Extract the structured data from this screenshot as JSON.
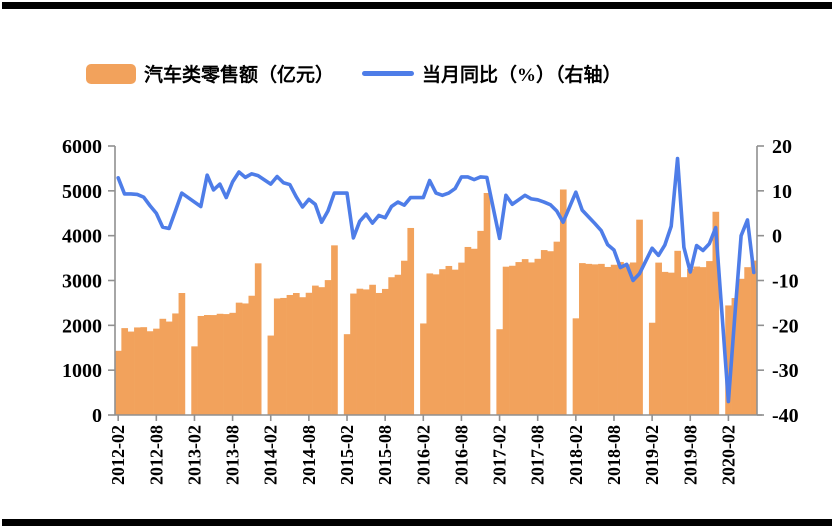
{
  "page": {
    "background": "#ffffff",
    "top_rule_color": "#000000",
    "bottom_rule_color": "#000000"
  },
  "colors": {
    "bar": "#F2A25C",
    "line": "#4E7DE8",
    "axis": "#909090",
    "text": "#000000"
  },
  "legend": [
    {
      "label": "汽车类零售额（亿元）",
      "type": "bar",
      "color": "#F2A25C"
    },
    {
      "label": "当月同比（%）（右轴）",
      "type": "line",
      "color": "#4E7DE8"
    }
  ],
  "chart_data": {
    "type": "bar+line combo (dual axis)",
    "title": "",
    "legend_position": "top",
    "grid": false,
    "x_axis": {
      "tick_labels": [
        "2012-02",
        "2012-08",
        "2013-02",
        "2013-08",
        "2014-02",
        "2014-08",
        "2015-02",
        "2015-08",
        "2016-02",
        "2016-08",
        "2017-02",
        "2017-08",
        "2018-02",
        "2018-08",
        "2019-02",
        "2019-08",
        "2020-02"
      ],
      "note": "monthly slots from 2012-02 to 2020-06; January slots have no data (white gaps between years)"
    },
    "left_axis": {
      "series": "汽车类零售额（亿元）",
      "min": 0,
      "max": 6000,
      "step": 1000,
      "tick_labels": [
        "0",
        "1000",
        "2000",
        "3000",
        "4000",
        "5000",
        "6000"
      ]
    },
    "right_axis": {
      "series": "当月同比（%）",
      "min": -40,
      "max": 20,
      "step": 10,
      "tick_labels": [
        "-40",
        "-30",
        "-20",
        "-10",
        "0",
        "10",
        "20"
      ]
    },
    "series": [
      {
        "name": "汽车类零售额（亿元）",
        "type": "bar",
        "axis": "left",
        "color": "#F2A25C"
      },
      {
        "name": "当月同比（%）（右轴）",
        "type": "line",
        "axis": "right",
        "color": "#4E7DE8"
      }
    ],
    "slots": [
      {
        "m": "2012-02",
        "bar": 1432,
        "line": 12.9
      },
      {
        "m": "2012-03",
        "bar": 1938,
        "line": 9.3
      },
      {
        "m": "2012-04",
        "bar": 1861,
        "line": 9.3
      },
      {
        "m": "2012-05",
        "bar": 1953,
        "line": 9.2
      },
      {
        "m": "2012-06",
        "bar": 1959,
        "line": 8.6
      },
      {
        "m": "2012-07",
        "bar": 1868,
        "line": 6.7
      },
      {
        "m": "2012-08",
        "bar": 1926,
        "line": 5.0
      },
      {
        "m": "2012-09",
        "bar": 2146,
        "line": 1.9
      },
      {
        "m": "2012-10",
        "bar": 2084,
        "line": 1.6
      },
      {
        "m": "2012-11",
        "bar": 2265,
        "line": 5.5
      },
      {
        "m": "2012-12",
        "bar": 2721,
        "line": 9.5
      },
      {
        "m": "2013-01",
        "bar": null,
        "line": null
      },
      {
        "m": "2013-02",
        "bar": 1531,
        "line": 7.5
      },
      {
        "m": "2013-03",
        "bar": 2209,
        "line": 6.5
      },
      {
        "m": "2013-04",
        "bar": 2230,
        "line": 13.5
      },
      {
        "m": "2013-05",
        "bar": 2229,
        "line": 10.2
      },
      {
        "m": "2013-06",
        "bar": 2258,
        "line": 11.5
      },
      {
        "m": "2013-07",
        "bar": 2251,
        "line": 8.5
      },
      {
        "m": "2013-08",
        "bar": 2279,
        "line": 12.0
      },
      {
        "m": "2013-09",
        "bar": 2506,
        "line": 14.2
      },
      {
        "m": "2013-10",
        "bar": 2488,
        "line": 13.0
      },
      {
        "m": "2013-11",
        "bar": 2660,
        "line": 13.8
      },
      {
        "m": "2013-12",
        "bar": 3383,
        "line": 13.4
      },
      {
        "m": "2014-01",
        "bar": null,
        "line": null
      },
      {
        "m": "2014-02",
        "bar": 1772,
        "line": 11.5
      },
      {
        "m": "2014-03",
        "bar": 2599,
        "line": 13.2
      },
      {
        "m": "2014-04",
        "bar": 2611,
        "line": 11.8
      },
      {
        "m": "2014-05",
        "bar": 2677,
        "line": 11.4
      },
      {
        "m": "2014-06",
        "bar": 2721,
        "line": 8.7
      },
      {
        "m": "2014-07",
        "bar": 2627,
        "line": 6.4
      },
      {
        "m": "2014-08",
        "bar": 2726,
        "line": 8.1
      },
      {
        "m": "2014-09",
        "bar": 2886,
        "line": 7.0
      },
      {
        "m": "2014-10",
        "bar": 2851,
        "line": 3.0
      },
      {
        "m": "2014-11",
        "bar": 3009,
        "line": 5.5
      },
      {
        "m": "2014-12",
        "bar": 3784,
        "line": 9.5
      },
      {
        "m": "2015-01",
        "bar": null,
        "line": null
      },
      {
        "m": "2015-02",
        "bar": 1803,
        "line": 9.5
      },
      {
        "m": "2015-03",
        "bar": 2709,
        "line": -0.5
      },
      {
        "m": "2015-04",
        "bar": 2817,
        "line": 3.2
      },
      {
        "m": "2015-05",
        "bar": 2801,
        "line": 4.8
      },
      {
        "m": "2015-06",
        "bar": 2905,
        "line": 2.8
      },
      {
        "m": "2015-07",
        "bar": 2722,
        "line": 4.5
      },
      {
        "m": "2015-08",
        "bar": 2812,
        "line": 4.0
      },
      {
        "m": "2015-09",
        "bar": 3073,
        "line": 6.5
      },
      {
        "m": "2015-10",
        "bar": 3128,
        "line": 7.5
      },
      {
        "m": "2015-11",
        "bar": 3441,
        "line": 6.8
      },
      {
        "m": "2015-12",
        "bar": 4172,
        "line": 8.5
      },
      {
        "m": "2016-01",
        "bar": null,
        "line": null
      },
      {
        "m": "2016-02",
        "bar": 2042,
        "line": 8.5
      },
      {
        "m": "2016-03",
        "bar": 3158,
        "line": 12.3
      },
      {
        "m": "2016-04",
        "bar": 3137,
        "line": 9.5
      },
      {
        "m": "2016-05",
        "bar": 3252,
        "line": 9.0
      },
      {
        "m": "2016-06",
        "bar": 3324,
        "line": 9.5
      },
      {
        "m": "2016-07",
        "bar": 3242,
        "line": 10.5
      },
      {
        "m": "2016-08",
        "bar": 3399,
        "line": 13.1
      },
      {
        "m": "2016-09",
        "bar": 3748,
        "line": 13.1
      },
      {
        "m": "2016-10",
        "bar": 3708,
        "line": 12.5
      },
      {
        "m": "2016-11",
        "bar": 4107,
        "line": 13.1
      },
      {
        "m": "2016-12",
        "bar": 4952,
        "line": 13.0
      },
      {
        "m": "2017-01",
        "bar": null,
        "line": null
      },
      {
        "m": "2017-02",
        "bar": 1913,
        "line": -0.6
      },
      {
        "m": "2017-03",
        "bar": 3308,
        "line": 9.0
      },
      {
        "m": "2017-04",
        "bar": 3329,
        "line": 7.0
      },
      {
        "m": "2017-05",
        "bar": 3411,
        "line": 8.0
      },
      {
        "m": "2017-06",
        "bar": 3477,
        "line": 9.0
      },
      {
        "m": "2017-07",
        "bar": 3403,
        "line": 8.2
      },
      {
        "m": "2017-08",
        "bar": 3484,
        "line": 8.0
      },
      {
        "m": "2017-09",
        "bar": 3679,
        "line": 7.5
      },
      {
        "m": "2017-10",
        "bar": 3653,
        "line": 6.9
      },
      {
        "m": "2017-11",
        "bar": 3866,
        "line": 5.5
      },
      {
        "m": "2017-12",
        "bar": 5030,
        "line": 3.0
      },
      {
        "m": "2018-01",
        "bar": null,
        "line": null
      },
      {
        "m": "2018-02",
        "bar": 2156,
        "line": 9.7
      },
      {
        "m": "2018-03",
        "bar": 3388,
        "line": 5.7
      },
      {
        "m": "2018-04",
        "bar": 3371,
        "line": 4.2
      },
      {
        "m": "2018-05",
        "bar": 3360,
        "line": 2.7
      },
      {
        "m": "2018-06",
        "bar": 3371,
        "line": 1.1
      },
      {
        "m": "2018-07",
        "bar": 3302,
        "line": -2.0
      },
      {
        "m": "2018-08",
        "bar": 3351,
        "line": -3.2
      },
      {
        "m": "2018-09",
        "bar": 3413,
        "line": -7.1
      },
      {
        "m": "2018-10",
        "bar": 3362,
        "line": -6.4
      },
      {
        "m": "2018-11",
        "bar": 3402,
        "line": -10.0
      },
      {
        "m": "2018-12",
        "bar": 4357,
        "line": -8.5
      },
      {
        "m": "2019-01",
        "bar": null,
        "line": null
      },
      {
        "m": "2019-02",
        "bar": 2058,
        "line": -2.8
      },
      {
        "m": "2019-03",
        "bar": 3399,
        "line": -4.4
      },
      {
        "m": "2019-04",
        "bar": 3192,
        "line": -2.1
      },
      {
        "m": "2019-05",
        "bar": 3175,
        "line": 2.1
      },
      {
        "m": "2019-06",
        "bar": 3662,
        "line": 17.2
      },
      {
        "m": "2019-07",
        "bar": 3074,
        "line": -2.6
      },
      {
        "m": "2019-08",
        "bar": 3259,
        "line": -8.1
      },
      {
        "m": "2019-09",
        "bar": 3311,
        "line": -2.2
      },
      {
        "m": "2019-10",
        "bar": 3298,
        "line": -3.3
      },
      {
        "m": "2019-11",
        "bar": 3433,
        "line": -1.8
      },
      {
        "m": "2019-12",
        "bar": 4533,
        "line": 1.8
      },
      {
        "m": "2020-01",
        "bar": null,
        "line": null
      },
      {
        "m": "2020-02",
        "bar": 2444,
        "line": -37.0
      },
      {
        "m": "2020-03",
        "bar": 2609,
        "line": -18.1
      },
      {
        "m": "2020-04",
        "bar": 3038,
        "line": 0.0
      },
      {
        "m": "2020-05",
        "bar": 3297,
        "line": 3.5
      },
      {
        "m": "2020-06",
        "bar": 3444,
        "line": -8.2
      }
    ]
  }
}
